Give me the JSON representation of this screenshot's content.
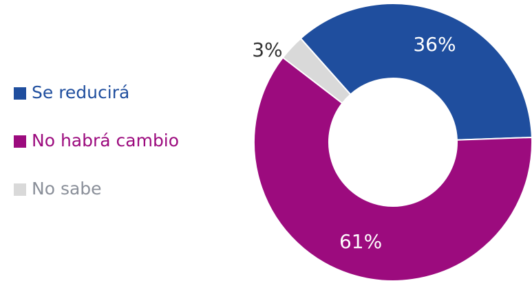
{
  "chart_data": {
    "type": "donut",
    "categories": [
      "Se reducirá",
      "No habrá cambio",
      "No sabe"
    ],
    "values": [
      36,
      61,
      3
    ],
    "value_labels": [
      "36%",
      "61%",
      "3%"
    ],
    "colors": [
      "#1f4e9e",
      "#9c0b7e",
      "#d9d9d9"
    ],
    "legend_text_colors": [
      "#1f4e9e",
      "#9c0b7e",
      "#8a8f99"
    ],
    "legend": "left"
  }
}
